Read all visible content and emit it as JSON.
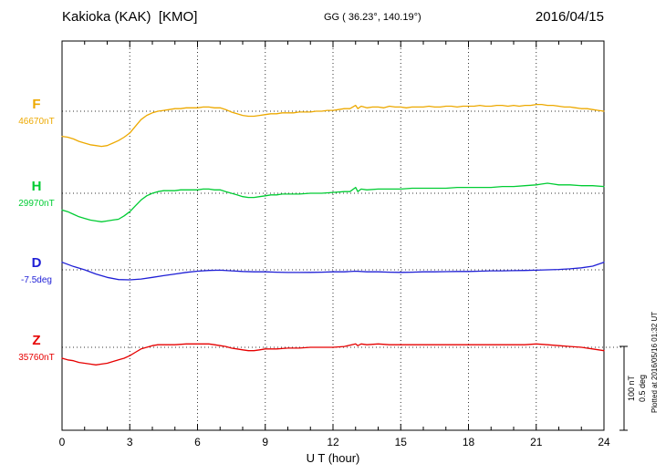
{
  "header": {
    "station": "Kakioka (KAK)  [KMO]",
    "gg": "GG ( 36.23°, 140.19°)",
    "date": "2016/04/15"
  },
  "scale_bar": {
    "nt_label": "100 nT",
    "deg_label": "0.5 deg"
  },
  "plotted_note": "Plotted at 2016/05/16 01:32 UT",
  "chart_data": {
    "type": "line",
    "title": "Kakioka (KAK) [KMO] magnetogram",
    "date": "2016/04/15",
    "xlabel": "U T (hour)",
    "x_range_hours": [
      0,
      24
    ],
    "x_ticks": [
      0,
      3,
      6,
      9,
      12,
      15,
      18,
      21,
      24
    ],
    "grid": "dotted vertical lines every 3 h; dotted horizontal baseline per trace",
    "legend_position": "left-of-plot",
    "scale": {
      "nT_per_div": 100,
      "deg_per_div": 0.5
    },
    "series": [
      {
        "name": "F",
        "unit": "nT",
        "baseline": 46670,
        "value_label": "46670nT",
        "color": "#eda900",
        "points": [
          [
            0,
            -30
          ],
          [
            0.25,
            -31
          ],
          [
            0.5,
            -33
          ],
          [
            0.75,
            -36
          ],
          [
            1,
            -38
          ],
          [
            1.25,
            -40
          ],
          [
            1.5,
            -41
          ],
          [
            1.75,
            -42
          ],
          [
            2,
            -41
          ],
          [
            2.25,
            -38
          ],
          [
            2.5,
            -35
          ],
          [
            2.75,
            -31
          ],
          [
            3,
            -26
          ],
          [
            3.25,
            -18
          ],
          [
            3.5,
            -10
          ],
          [
            3.75,
            -5
          ],
          [
            4,
            -2
          ],
          [
            4.25,
            0
          ],
          [
            4.5,
            1
          ],
          [
            4.75,
            2
          ],
          [
            5,
            3
          ],
          [
            5.25,
            3
          ],
          [
            5.5,
            4
          ],
          [
            5.75,
            4
          ],
          [
            6,
            4
          ],
          [
            6.25,
            5
          ],
          [
            6.5,
            5
          ],
          [
            6.75,
            4
          ],
          [
            7,
            4
          ],
          [
            7.25,
            2
          ],
          [
            7.5,
            -1
          ],
          [
            7.75,
            -3
          ],
          [
            8,
            -5
          ],
          [
            8.25,
            -6
          ],
          [
            8.5,
            -6
          ],
          [
            8.75,
            -5
          ],
          [
            9,
            -4
          ],
          [
            9.25,
            -3
          ],
          [
            9.5,
            -3
          ],
          [
            9.75,
            -2
          ],
          [
            10,
            -2
          ],
          [
            10.25,
            -2
          ],
          [
            10.5,
            -1
          ],
          [
            10.75,
            -1
          ],
          [
            11,
            -1
          ],
          [
            11.25,
            0
          ],
          [
            11.5,
            0
          ],
          [
            11.75,
            1
          ],
          [
            12,
            1
          ],
          [
            12.25,
            2
          ],
          [
            12.5,
            3
          ],
          [
            12.75,
            3
          ],
          [
            13,
            7
          ],
          [
            13.1,
            3
          ],
          [
            13.25,
            6
          ],
          [
            13.5,
            4
          ],
          [
            13.75,
            5
          ],
          [
            14,
            5
          ],
          [
            14.25,
            4
          ],
          [
            14.5,
            6
          ],
          [
            14.75,
            5
          ],
          [
            15,
            5
          ],
          [
            15.25,
            4
          ],
          [
            15.5,
            5
          ],
          [
            15.75,
            5
          ],
          [
            16,
            5
          ],
          [
            16.25,
            6
          ],
          [
            16.5,
            5
          ],
          [
            16.75,
            5
          ],
          [
            17,
            6
          ],
          [
            17.25,
            6
          ],
          [
            17.5,
            5
          ],
          [
            17.75,
            6
          ],
          [
            18,
            6
          ],
          [
            18.25,
            6
          ],
          [
            18.5,
            7
          ],
          [
            18.75,
            6
          ],
          [
            19,
            6
          ],
          [
            19.25,
            7
          ],
          [
            19.5,
            7
          ],
          [
            19.75,
            6
          ],
          [
            20,
            7
          ],
          [
            20.25,
            6
          ],
          [
            20.5,
            7
          ],
          [
            20.75,
            7
          ],
          [
            21,
            8
          ],
          [
            21.25,
            8
          ],
          [
            21.5,
            7
          ],
          [
            21.75,
            7
          ],
          [
            22,
            6
          ],
          [
            22.25,
            5
          ],
          [
            22.5,
            5
          ],
          [
            22.75,
            4
          ],
          [
            23,
            3
          ],
          [
            23.25,
            3
          ],
          [
            23.5,
            2
          ],
          [
            23.75,
            1
          ],
          [
            24,
            0
          ]
        ]
      },
      {
        "name": "H",
        "unit": "nT",
        "baseline": 29970,
        "value_label": "29970nT",
        "color": "#00cc33",
        "points": [
          [
            0,
            -20
          ],
          [
            0.25,
            -22
          ],
          [
            0.5,
            -25
          ],
          [
            0.75,
            -28
          ],
          [
            1,
            -30
          ],
          [
            1.25,
            -32
          ],
          [
            1.5,
            -33
          ],
          [
            1.75,
            -34
          ],
          [
            2,
            -33
          ],
          [
            2.25,
            -32
          ],
          [
            2.5,
            -31
          ],
          [
            2.75,
            -27
          ],
          [
            3,
            -22
          ],
          [
            3.25,
            -15
          ],
          [
            3.5,
            -8
          ],
          [
            3.75,
            -3
          ],
          [
            4,
            0
          ],
          [
            4.25,
            2
          ],
          [
            4.5,
            3
          ],
          [
            4.75,
            3
          ],
          [
            5,
            3
          ],
          [
            5.25,
            4
          ],
          [
            5.5,
            4
          ],
          [
            5.75,
            4
          ],
          [
            6,
            4
          ],
          [
            6.25,
            5
          ],
          [
            6.5,
            5
          ],
          [
            6.75,
            4
          ],
          [
            7,
            4
          ],
          [
            7.25,
            2
          ],
          [
            7.5,
            0
          ],
          [
            7.75,
            -2
          ],
          [
            8,
            -4
          ],
          [
            8.25,
            -5
          ],
          [
            8.5,
            -5
          ],
          [
            8.75,
            -4
          ],
          [
            9,
            -3
          ],
          [
            9.25,
            -2
          ],
          [
            9.5,
            -2
          ],
          [
            9.75,
            -1
          ],
          [
            10,
            -1
          ],
          [
            10.5,
            -1
          ],
          [
            11,
            0
          ],
          [
            11.5,
            0
          ],
          [
            12,
            1
          ],
          [
            12.5,
            2
          ],
          [
            12.75,
            2
          ],
          [
            13,
            7
          ],
          [
            13.1,
            2
          ],
          [
            13.25,
            5
          ],
          [
            13.5,
            4
          ],
          [
            14,
            5
          ],
          [
            14.5,
            5
          ],
          [
            15,
            5
          ],
          [
            15.5,
            6
          ],
          [
            16,
            6
          ],
          [
            16.5,
            6
          ],
          [
            17,
            6
          ],
          [
            17.5,
            7
          ],
          [
            18,
            7
          ],
          [
            18.5,
            7
          ],
          [
            19,
            7
          ],
          [
            19.5,
            8
          ],
          [
            20,
            8
          ],
          [
            20.5,
            9
          ],
          [
            21,
            10
          ],
          [
            21.25,
            11
          ],
          [
            21.5,
            12
          ],
          [
            21.75,
            11
          ],
          [
            22,
            10
          ],
          [
            22.5,
            10
          ],
          [
            23,
            9
          ],
          [
            23.5,
            9
          ],
          [
            24,
            8
          ]
        ]
      },
      {
        "name": "D",
        "unit": "deg",
        "baseline": -7.5,
        "value_label": "-7.5deg",
        "color": "#1f1fd6",
        "points": [
          [
            0,
            0.045
          ],
          [
            0.5,
            0.02
          ],
          [
            1,
            0.0
          ],
          [
            1.5,
            -0.025
          ],
          [
            2,
            -0.045
          ],
          [
            2.5,
            -0.058
          ],
          [
            3,
            -0.06
          ],
          [
            3.5,
            -0.055
          ],
          [
            4,
            -0.045
          ],
          [
            4.5,
            -0.035
          ],
          [
            5,
            -0.025
          ],
          [
            5.5,
            -0.015
          ],
          [
            6,
            -0.008
          ],
          [
            6.5,
            -0.004
          ],
          [
            7,
            -0.002
          ],
          [
            7.5,
            -0.006
          ],
          [
            8,
            -0.01
          ],
          [
            8.5,
            -0.012
          ],
          [
            9,
            -0.012
          ],
          [
            9.5,
            -0.014
          ],
          [
            10,
            -0.016
          ],
          [
            10.5,
            -0.016
          ],
          [
            11,
            -0.015
          ],
          [
            11.5,
            -0.014
          ],
          [
            12,
            -0.012
          ],
          [
            12.5,
            -0.012
          ],
          [
            13,
            -0.008
          ],
          [
            13.5,
            -0.012
          ],
          [
            14,
            -0.012
          ],
          [
            14.5,
            -0.014
          ],
          [
            15,
            -0.015
          ],
          [
            15.5,
            -0.014
          ],
          [
            16,
            -0.012
          ],
          [
            16.5,
            -0.012
          ],
          [
            17,
            -0.011
          ],
          [
            17.5,
            -0.01
          ],
          [
            18,
            -0.01
          ],
          [
            18.5,
            -0.008
          ],
          [
            19,
            -0.006
          ],
          [
            19.5,
            -0.006
          ],
          [
            20,
            -0.005
          ],
          [
            20.5,
            -0.004
          ],
          [
            21,
            -0.002
          ],
          [
            21.5,
            0.0
          ],
          [
            22,
            0.002
          ],
          [
            22.5,
            0.006
          ],
          [
            23,
            0.012
          ],
          [
            23.5,
            0.022
          ],
          [
            24,
            0.045
          ]
        ]
      },
      {
        "name": "Z",
        "unit": "nT",
        "baseline": 35760,
        "value_label": "35760nT",
        "color": "#e60000",
        "points": [
          [
            0,
            -13
          ],
          [
            0.25,
            -15
          ],
          [
            0.5,
            -16
          ],
          [
            0.75,
            -18
          ],
          [
            1,
            -19
          ],
          [
            1.25,
            -20
          ],
          [
            1.5,
            -21
          ],
          [
            1.75,
            -20
          ],
          [
            2,
            -19
          ],
          [
            2.25,
            -17
          ],
          [
            2.5,
            -15
          ],
          [
            2.75,
            -13
          ],
          [
            3,
            -10
          ],
          [
            3.25,
            -6
          ],
          [
            3.5,
            -2
          ],
          [
            3.75,
            0
          ],
          [
            4,
            2
          ],
          [
            4.25,
            3
          ],
          [
            4.5,
            3
          ],
          [
            4.75,
            3
          ],
          [
            5,
            3
          ],
          [
            5.5,
            4
          ],
          [
            6,
            4
          ],
          [
            6.25,
            4
          ],
          [
            6.5,
            4
          ],
          [
            6.75,
            3
          ],
          [
            7,
            2
          ],
          [
            7.25,
            1
          ],
          [
            7.5,
            -1
          ],
          [
            7.75,
            -2
          ],
          [
            8,
            -3
          ],
          [
            8.25,
            -4
          ],
          [
            8.5,
            -4
          ],
          [
            8.75,
            -3
          ],
          [
            9,
            -2
          ],
          [
            9.5,
            -2
          ],
          [
            10,
            -1
          ],
          [
            10.5,
            -1
          ],
          [
            11,
            0
          ],
          [
            11.5,
            0
          ],
          [
            12,
            0
          ],
          [
            12.5,
            1
          ],
          [
            13,
            4
          ],
          [
            13.1,
            2
          ],
          [
            13.25,
            4
          ],
          [
            13.5,
            3
          ],
          [
            14,
            4
          ],
          [
            14.5,
            3
          ],
          [
            15,
            3
          ],
          [
            15.5,
            3
          ],
          [
            16,
            3
          ],
          [
            16.5,
            3
          ],
          [
            17,
            3
          ],
          [
            17.5,
            3
          ],
          [
            18,
            3
          ],
          [
            18.5,
            3
          ],
          [
            19,
            3
          ],
          [
            19.5,
            3
          ],
          [
            20,
            3
          ],
          [
            20.5,
            3
          ],
          [
            21,
            4
          ],
          [
            21.5,
            3
          ],
          [
            22,
            2
          ],
          [
            22.5,
            1
          ],
          [
            23,
            0
          ],
          [
            23.5,
            -2
          ],
          [
            24,
            -4
          ]
        ]
      }
    ]
  }
}
